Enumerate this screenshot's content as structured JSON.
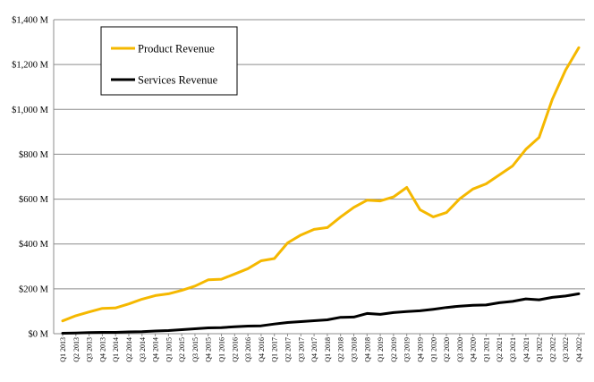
{
  "chart_data": {
    "type": "line",
    "title": "",
    "xlabel": "",
    "ylabel": "",
    "ylim": [
      0,
      1400
    ],
    "y_ticks": [
      "$0 M",
      "$200 M",
      "$400 M",
      "$600 M",
      "$800 M",
      "$1,000 M",
      "$1,200 M",
      "$1,400 M"
    ],
    "y_tick_values": [
      0,
      200,
      400,
      600,
      800,
      1000,
      1200,
      1400
    ],
    "grid": "horizontal",
    "legend_position": "top-left",
    "categories": [
      "Q1 2013",
      "Q2 2013",
      "Q3 2013",
      "Q4 2013",
      "Q1 2014",
      "Q2 2014",
      "Q3 2014",
      "Q4 2014",
      "Q1 2015",
      "Q2 2015",
      "Q3 2015",
      "Q4 2015",
      "Q1 2016",
      "Q2 2016",
      "Q3 2016",
      "Q4 2016",
      "Q1 2017",
      "Q2 2017",
      "Q3 2017",
      "Q4 2017",
      "Q1 2018",
      "Q2 2018",
      "Q3 2018",
      "Q4 2018",
      "Q1 2019",
      "Q2 2019",
      "Q3 2019",
      "Q4 2019",
      "Q1 2020",
      "Q2 2020",
      "Q3 2020",
      "Q4 2020",
      "Q1 2021",
      "Q2 2021",
      "Q3 2021",
      "Q4 2021",
      "Q1 2022",
      "Q2 2022",
      "Q3 2022",
      "Q4 2022"
    ],
    "series": [
      {
        "name": "Product Revenue",
        "color": "#F5B800",
        "values": [
          57,
          80,
          97,
          113,
          115,
          133,
          154,
          170,
          178,
          193,
          212,
          240,
          243,
          266,
          290,
          325,
          335,
          405,
          440,
          465,
          473,
          520,
          563,
          595,
          592,
          610,
          652,
          553,
          521,
          540,
          601,
          645,
          668,
          708,
          748,
          822,
          875,
          1045,
          1175,
          1275
        ]
      },
      {
        "name": "Services Revenue",
        "color": "#000000",
        "values": [
          2,
          3,
          5,
          6,
          6,
          8,
          9,
          12,
          14,
          18,
          22,
          26,
          27,
          31,
          34,
          35,
          43,
          50,
          54,
          58,
          62,
          73,
          74,
          90,
          86,
          94,
          99,
          102,
          109,
          117,
          123,
          127,
          128,
          138,
          144,
          155,
          151,
          162,
          168,
          178
        ]
      }
    ]
  }
}
